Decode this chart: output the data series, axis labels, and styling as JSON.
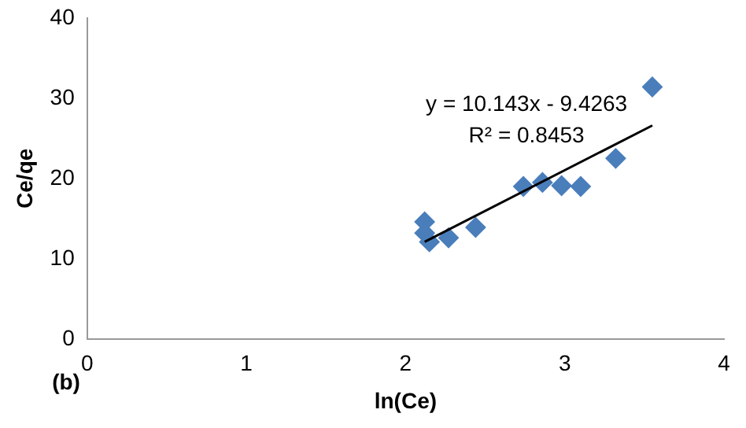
{
  "chart_data": {
    "type": "scatter",
    "xlabel": "ln(Ce)",
    "ylabel": "Ce/qe",
    "xlim": [
      0,
      4
    ],
    "xticks": [
      0,
      1,
      2,
      3,
      4
    ],
    "ylim": [
      0,
      40
    ],
    "yticks": [
      0,
      10,
      20,
      30,
      40
    ],
    "grid": false,
    "legend": false,
    "marker": "diamond",
    "series": [
      {
        "type": "scatter",
        "color": "#4a7ebb",
        "x": [
          2.12,
          2.12,
          2.15,
          2.27,
          2.44,
          2.74,
          2.86,
          2.98,
          3.1,
          3.32,
          3.55
        ],
        "values": [
          14.6,
          13.2,
          12.1,
          12.6,
          13.9,
          19.0,
          19.5,
          19.1,
          19.0,
          22.5,
          31.4
        ]
      },
      {
        "type": "line",
        "color": "#000000",
        "marker": "none",
        "x": [
          2.12,
          3.55
        ],
        "values": [
          12.1,
          26.6
        ]
      }
    ],
    "annotations": [
      "y = 10.143x - 9.4263",
      "R² = 0.8453",
      "(b)"
    ]
  }
}
